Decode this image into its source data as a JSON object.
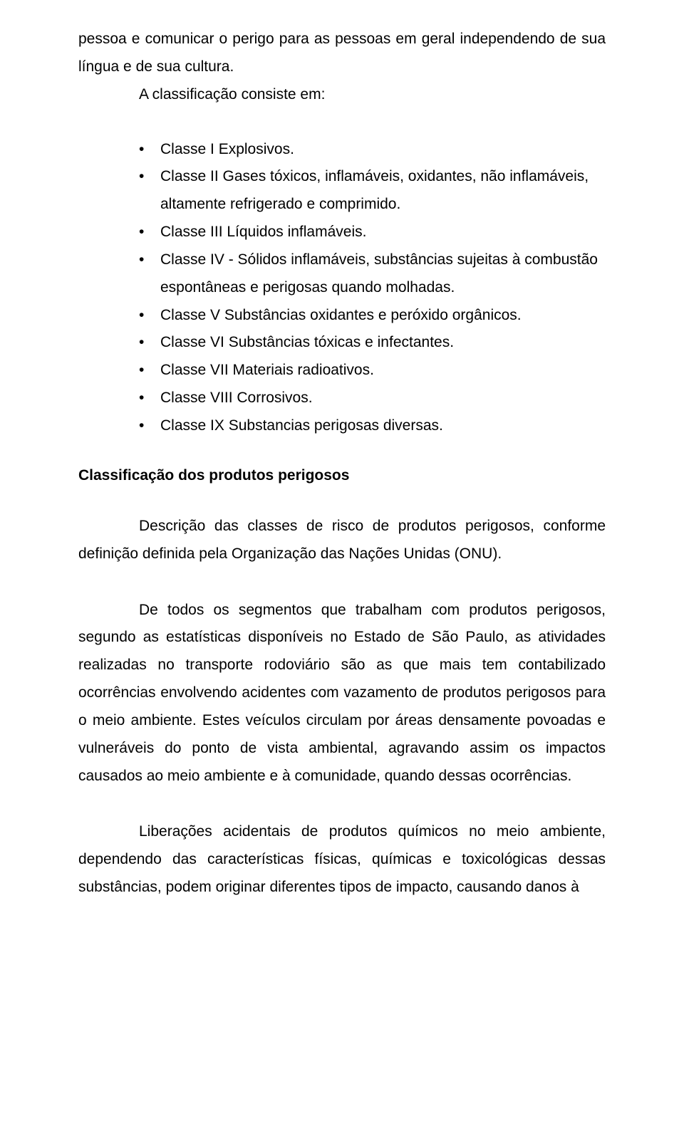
{
  "fonts": {
    "body_size_pt": 16,
    "heading_size_pt": 16,
    "line_height": 1.85,
    "family": "Arial"
  },
  "colors": {
    "text": "#000000",
    "background": "#ffffff"
  },
  "p1_line1": "pessoa e comunicar o perigo para as pessoas em geral independendo de sua língua e de sua cultura.",
  "p1_line2": "A classificação consiste em:",
  "bullets": [
    "Classe I Explosivos.",
    "Classe II Gases tóxicos, inflamáveis, oxidantes, não inflamáveis, altamente refrigerado e comprimido.",
    "Classe III Líquidos inflamáveis.",
    "Classe IV - Sólidos inflamáveis, substâncias sujeitas à combustão espontâneas e perigosas quando molhadas.",
    "Classe V Substâncias oxidantes e peróxido orgânicos.",
    "Classe VI Substâncias tóxicas e infectantes.",
    "Classe VII Materiais radioativos.",
    "Classe VIII Corrosivos.",
    "Classe IX Substancias perigosas diversas."
  ],
  "heading1": "Classificação dos produtos perigosos",
  "p2": "Descrição das classes de risco de produtos perigosos, conforme definição definida pela Organização das Nações Unidas (ONU).",
  "p3": "De todos os segmentos que trabalham com produtos perigosos, segundo as estatísticas disponíveis no Estado de São Paulo, as atividades realizadas no transporte rodoviário são as que mais tem contabilizado ocorrências envolvendo acidentes com vazamento de produtos perigosos para o meio ambiente. Estes veículos circulam por áreas densamente povoadas e vulneráveis do ponto de vista ambiental, agravando assim os impactos causados ao meio ambiente e à comunidade, quando dessas ocorrências.",
  "p4": "Liberações acidentais de produtos químicos no meio ambiente, dependendo das características físicas, químicas e toxicológicas dessas substâncias, podem originar diferentes tipos de impacto, causando danos à"
}
